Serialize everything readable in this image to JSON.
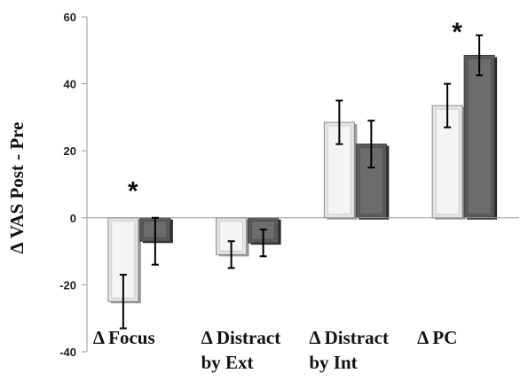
{
  "chart_data": {
    "type": "bar",
    "ylabel": "Δ VAS Post - Pre",
    "ylim": [
      -40,
      60
    ],
    "yticks": [
      "60",
      "40",
      "20",
      "0",
      "-20",
      "-40"
    ],
    "ytick_values": [
      60,
      40,
      20,
      0,
      -20,
      -40
    ],
    "categories": [
      [
        "Δ Focus"
      ],
      [
        "Δ Distract",
        "by Ext"
      ],
      [
        "Δ Distract",
        "by Int"
      ],
      [
        "Δ PC"
      ]
    ],
    "series": [
      {
        "values": [
          -25,
          -11,
          28.5,
          33.5
        ],
        "errors": [
          8,
          4,
          6.5,
          6.5
        ],
        "color": "#e4e4e4"
      },
      {
        "values": [
          -7,
          -7.5,
          22,
          48.5
        ],
        "errors": [
          7,
          4,
          7,
          6
        ],
        "color": "#5a5a5a"
      }
    ],
    "significance": [
      {
        "category_index": 0,
        "label": "*"
      },
      {
        "category_index": 3,
        "label": "*"
      }
    ],
    "grid": false,
    "legend": "none"
  }
}
